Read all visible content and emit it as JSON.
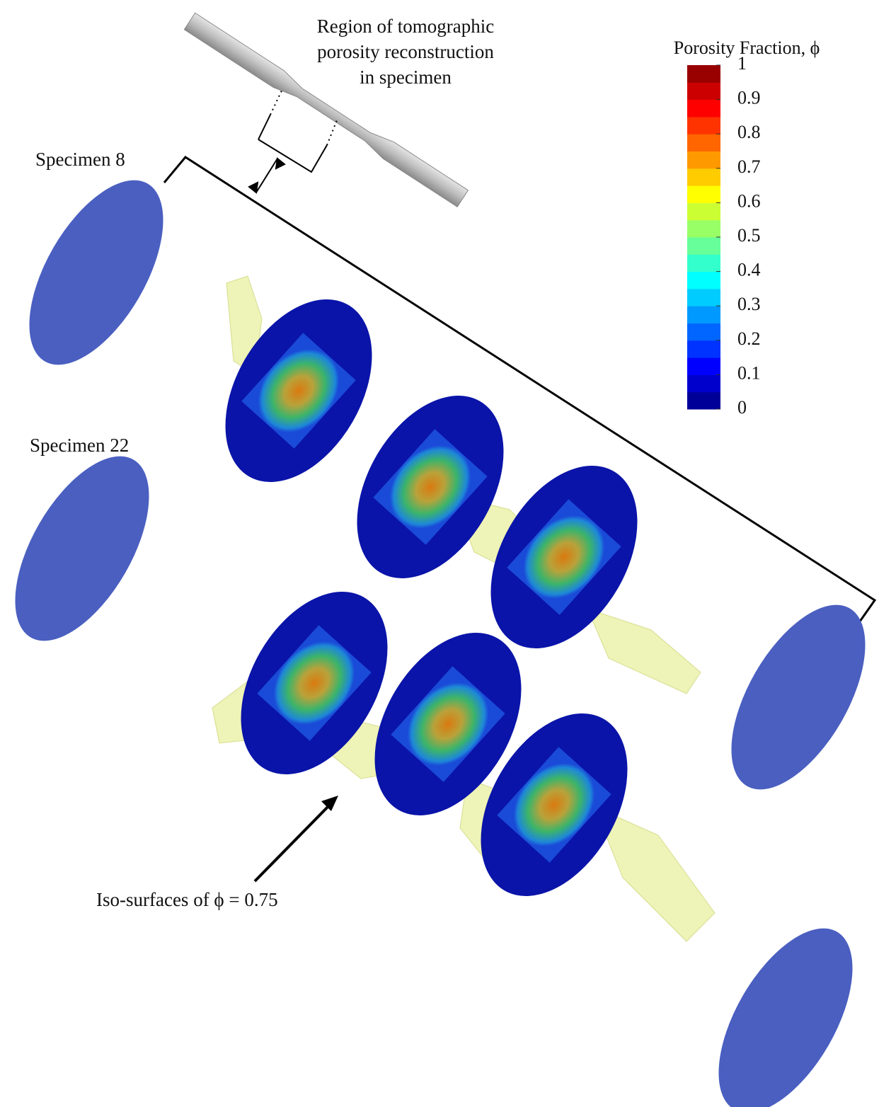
{
  "annotation": {
    "lines": [
      "Region of tomographic",
      "porosity reconstruction",
      "in specimen"
    ]
  },
  "specimen_labels": [
    "Specimen 8",
    "Specimen 22"
  ],
  "iso_label": "Iso-surfaces of ϕ = 0.75",
  "colorbar": {
    "title": "Porosity Fraction, ϕ",
    "ticks": [
      0,
      0.1,
      0.2,
      0.3,
      0.4,
      0.5,
      0.6,
      0.7,
      0.8,
      0.9,
      1
    ]
  }
}
